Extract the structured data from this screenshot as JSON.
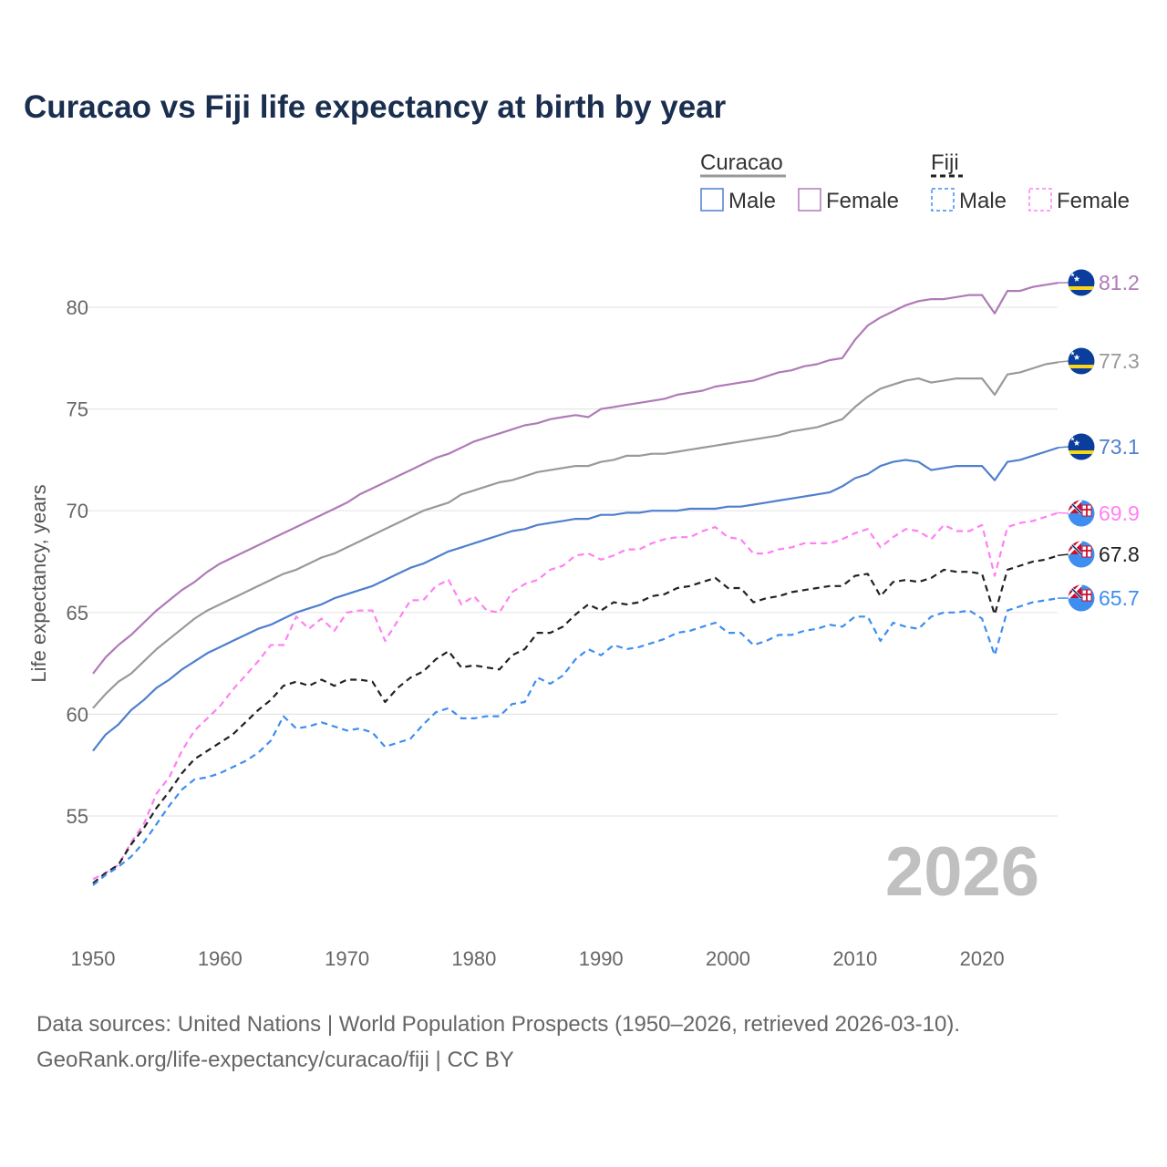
{
  "chart_data": {
    "type": "line",
    "title": "Curacao vs Fiji life expectancy at birth by year",
    "xlabel": "",
    "ylabel": "Life expectancy, years",
    "x_start": 1950,
    "x_end": 2026,
    "xlim": [
      1950,
      2026
    ],
    "ylim": [
      50.5,
      82.5
    ],
    "x_ticks": [
      "1950",
      "1960",
      "1970",
      "1980",
      "1990",
      "2000",
      "2010",
      "2020"
    ],
    "y_ticks": [
      "55",
      "60",
      "65",
      "70",
      "75",
      "80"
    ],
    "grid": true,
    "year_watermark": "2026",
    "legend": {
      "placement": "top-right",
      "groups": [
        {
          "name": "Curacao",
          "items": [
            "Male",
            "Female"
          ]
        },
        {
          "name": "Fiji",
          "items": [
            "Male",
            "Female"
          ]
        }
      ]
    },
    "series": [
      {
        "name": "Curacao Female",
        "country": "Curacao",
        "color": "#b07ab8",
        "dashed": false,
        "end_label": "81.2",
        "values": [
          62.0,
          62.8,
          63.4,
          63.9,
          64.5,
          65.1,
          65.6,
          66.1,
          66.5,
          67.0,
          67.4,
          67.7,
          68.0,
          68.3,
          68.6,
          68.9,
          69.2,
          69.5,
          69.8,
          70.1,
          70.4,
          70.8,
          71.1,
          71.4,
          71.7,
          72.0,
          72.3,
          72.6,
          72.8,
          73.1,
          73.4,
          73.6,
          73.8,
          74.0,
          74.2,
          74.3,
          74.5,
          74.6,
          74.7,
          74.6,
          75.0,
          75.1,
          75.2,
          75.3,
          75.4,
          75.5,
          75.7,
          75.8,
          75.9,
          76.1,
          76.2,
          76.3,
          76.4,
          76.6,
          76.8,
          76.9,
          77.1,
          77.2,
          77.4,
          77.5,
          78.4,
          79.1,
          79.5,
          79.8,
          80.1,
          80.3,
          80.4,
          80.4,
          80.5,
          80.6,
          80.6,
          79.7,
          80.8,
          80.8,
          81.0,
          81.1,
          81.2
        ]
      },
      {
        "name": "Curacao Total",
        "country": "Curacao",
        "color": "#999999",
        "dashed": false,
        "end_label": "77.3",
        "values": [
          60.3,
          61.0,
          61.6,
          62.0,
          62.6,
          63.2,
          63.7,
          64.2,
          64.7,
          65.1,
          65.4,
          65.7,
          66.0,
          66.3,
          66.6,
          66.9,
          67.1,
          67.4,
          67.7,
          67.9,
          68.2,
          68.5,
          68.8,
          69.1,
          69.4,
          69.7,
          70.0,
          70.2,
          70.4,
          70.8,
          71.0,
          71.2,
          71.4,
          71.5,
          71.7,
          71.9,
          72.0,
          72.1,
          72.2,
          72.2,
          72.4,
          72.5,
          72.7,
          72.7,
          72.8,
          72.8,
          72.9,
          73.0,
          73.1,
          73.2,
          73.3,
          73.4,
          73.5,
          73.6,
          73.7,
          73.9,
          74.0,
          74.1,
          74.3,
          74.5,
          75.1,
          75.6,
          76.0,
          76.2,
          76.4,
          76.5,
          76.3,
          76.4,
          76.5,
          76.5,
          76.5,
          75.7,
          76.7,
          76.8,
          77.0,
          77.2,
          77.3
        ]
      },
      {
        "name": "Curacao Male",
        "country": "Curacao",
        "color": "#4f7fcc",
        "dashed": false,
        "end_label": "73.1",
        "values": [
          58.2,
          59.0,
          59.5,
          60.2,
          60.7,
          61.3,
          61.7,
          62.2,
          62.6,
          63.0,
          63.3,
          63.6,
          63.9,
          64.2,
          64.4,
          64.7,
          65.0,
          65.2,
          65.4,
          65.7,
          65.9,
          66.1,
          66.3,
          66.6,
          66.9,
          67.2,
          67.4,
          67.7,
          68.0,
          68.2,
          68.4,
          68.6,
          68.8,
          69.0,
          69.1,
          69.3,
          69.4,
          69.5,
          69.6,
          69.6,
          69.8,
          69.8,
          69.9,
          69.9,
          70.0,
          70.0,
          70.0,
          70.1,
          70.1,
          70.1,
          70.2,
          70.2,
          70.3,
          70.4,
          70.5,
          70.6,
          70.7,
          70.8,
          70.9,
          71.2,
          71.6,
          71.8,
          72.2,
          72.4,
          72.5,
          72.4,
          72.0,
          72.1,
          72.2,
          72.2,
          72.2,
          71.5,
          72.4,
          72.5,
          72.7,
          72.9,
          73.1
        ]
      },
      {
        "name": "Fiji Female",
        "country": "Fiji",
        "color": "#ff80f2",
        "dashed": true,
        "end_label": "69.9",
        "values": [
          51.9,
          52.2,
          52.6,
          53.7,
          54.6,
          56.1,
          56.9,
          58.2,
          59.2,
          59.8,
          60.4,
          61.2,
          61.9,
          62.6,
          63.4,
          63.4,
          64.8,
          64.2,
          64.7,
          64.1,
          65.0,
          65.1,
          65.1,
          63.6,
          64.6,
          65.6,
          65.6,
          66.3,
          66.6,
          65.4,
          65.8,
          65.1,
          65.0,
          66.0,
          66.4,
          66.6,
          67.1,
          67.3,
          67.8,
          67.9,
          67.6,
          67.8,
          68.1,
          68.1,
          68.4,
          68.6,
          68.7,
          68.7,
          69.0,
          69.2,
          68.7,
          68.6,
          67.9,
          67.9,
          68.1,
          68.2,
          68.4,
          68.4,
          68.4,
          68.6,
          68.9,
          69.1,
          68.2,
          68.7,
          69.1,
          69.0,
          68.6,
          69.3,
          69.0,
          69.0,
          69.3,
          66.8,
          69.2,
          69.4,
          69.5,
          69.7,
          69.9
        ]
      },
      {
        "name": "Fiji Total",
        "country": "Fiji",
        "color": "#222222",
        "dashed": true,
        "end_label": "67.8",
        "values": [
          51.7,
          52.2,
          52.6,
          53.6,
          54.4,
          55.4,
          56.2,
          57.1,
          57.8,
          58.2,
          58.6,
          59.0,
          59.6,
          60.2,
          60.7,
          61.4,
          61.6,
          61.4,
          61.7,
          61.4,
          61.7,
          61.7,
          61.6,
          60.6,
          61.3,
          61.8,
          62.1,
          62.7,
          63.1,
          62.3,
          62.4,
          62.3,
          62.2,
          62.9,
          63.2,
          64.0,
          64.0,
          64.3,
          64.9,
          65.4,
          65.1,
          65.5,
          65.4,
          65.5,
          65.8,
          65.9,
          66.2,
          66.3,
          66.5,
          66.7,
          66.2,
          66.2,
          65.5,
          65.7,
          65.8,
          66.0,
          66.1,
          66.2,
          66.3,
          66.3,
          66.8,
          66.9,
          65.8,
          66.5,
          66.6,
          66.5,
          66.7,
          67.1,
          67.0,
          67.0,
          66.9,
          64.9,
          67.1,
          67.3,
          67.5,
          67.6,
          67.8
        ]
      },
      {
        "name": "Fiji Male",
        "country": "Fiji",
        "color": "#3d8ef0",
        "dashed": true,
        "end_label": "65.7",
        "values": [
          51.6,
          52.1,
          52.5,
          53.0,
          53.7,
          54.6,
          55.5,
          56.3,
          56.8,
          56.9,
          57.1,
          57.4,
          57.7,
          58.1,
          58.7,
          59.9,
          59.3,
          59.4,
          59.6,
          59.4,
          59.2,
          59.3,
          59.1,
          58.4,
          58.6,
          58.8,
          59.5,
          60.1,
          60.3,
          59.8,
          59.8,
          59.9,
          59.9,
          60.5,
          60.6,
          61.8,
          61.5,
          61.9,
          62.7,
          63.2,
          62.9,
          63.4,
          63.2,
          63.3,
          63.5,
          63.7,
          64.0,
          64.1,
          64.3,
          64.5,
          64.0,
          64.0,
          63.4,
          63.6,
          63.9,
          63.9,
          64.1,
          64.2,
          64.4,
          64.3,
          64.8,
          64.8,
          63.6,
          64.5,
          64.3,
          64.2,
          64.8,
          65.0,
          65.0,
          65.1,
          64.7,
          62.9,
          65.1,
          65.3,
          65.5,
          65.6,
          65.7
        ]
      }
    ]
  },
  "legend_colors": {
    "curacao_male": "#4f7fcc",
    "curacao_female": "#b07ab8",
    "fiji_male": "#3d8ef0",
    "fiji_female": "#ff80f2"
  },
  "footer": {
    "line1": "Data sources: United Nations | World Population Prospects (1950–2026, retrieved 2026-03-10).",
    "line2": "GeoRank.org/life-expectancy/curacao/fiji | CC BY"
  }
}
